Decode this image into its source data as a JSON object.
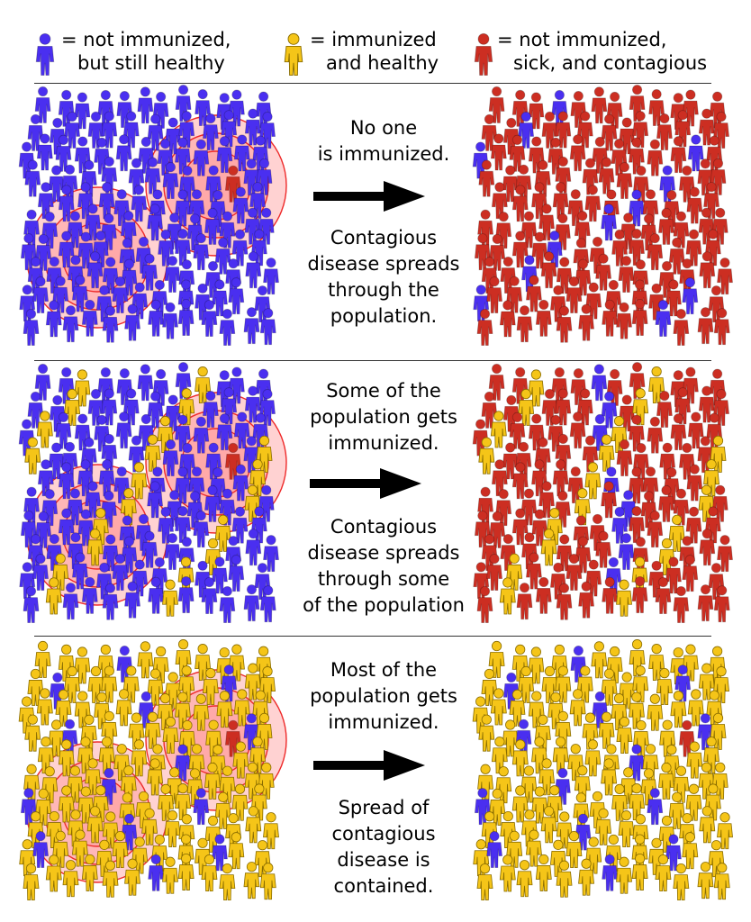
{
  "colors": {
    "not_immunized": "#4a2ff0",
    "immunized": "#f5c518",
    "sick": "#cc2e22",
    "ring_fill": "#ff9c9c",
    "ring_stroke": "#ee2a2a",
    "arrow": "#000000"
  },
  "legend": [
    {
      "icon": "blue-person-icon",
      "color_key": "not_immunized",
      "line1": "= not immunized,",
      "line2": "but still healthy"
    },
    {
      "icon": "yellow-person-icon",
      "color_key": "immunized",
      "line1": "= immunized",
      "line2": "and healthy"
    },
    {
      "icon": "red-person-icon",
      "color_key": "sick",
      "line1": "= not immunized,",
      "line2": "sick, and contagious"
    }
  ],
  "panels": [
    {
      "top_text": [
        "No one",
        "is immunized."
      ],
      "bottom_text": [
        "Contagious",
        "disease spreads",
        "through the",
        "population."
      ]
    },
    {
      "top_text": [
        "Some of the",
        "population gets",
        "immunized."
      ],
      "bottom_text": [
        "Contagious",
        "disease spreads",
        "through some",
        "of the population"
      ]
    },
    {
      "top_text": [
        "Most of the",
        "population gets",
        "immunized."
      ],
      "bottom_text": [
        "Spread of",
        "contagious",
        "disease is",
        "contained."
      ]
    }
  ]
}
